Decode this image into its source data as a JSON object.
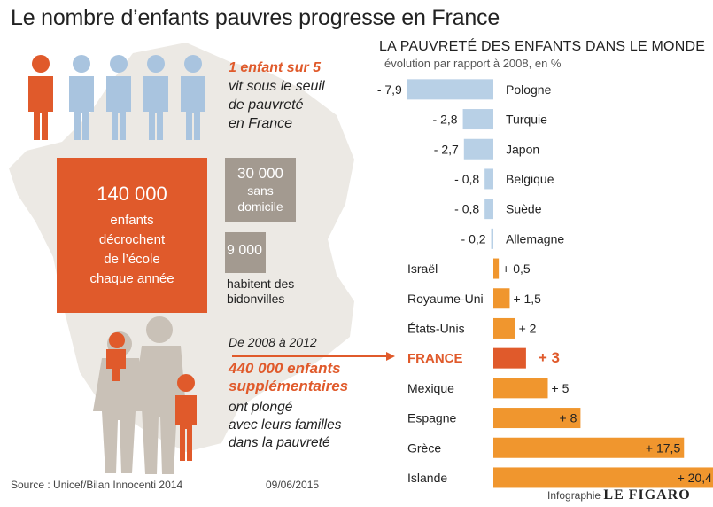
{
  "header": {
    "title": "Le nombre d’enfants pauvres progresse en France"
  },
  "stats": {
    "ratio_highlight": "1 enfant sur 5",
    "ratio_line1": "vit sous le seuil",
    "ratio_line2": "de pauvreté",
    "ratio_line3": "en France",
    "dropout_value": "140 000",
    "dropout_line1": "enfants",
    "dropout_line2": "décrochent",
    "dropout_line3": "de l’école",
    "dropout_line4": "chaque année",
    "homeless_value": "30 000",
    "homeless_line1": "sans",
    "homeless_line2": "domicile",
    "slums_value": "9 000",
    "slums_line1": "habitent des",
    "slums_line2": "bidonvilles",
    "period": "De 2008 à 2012",
    "increase_line1": "440 000 enfants",
    "increase_line2": "supplémentaires",
    "increase_line3": "ont plongé",
    "increase_line4": "avec leurs familles",
    "increase_line5": "dans la pauvreté"
  },
  "colors": {
    "accent": "#e05a2b",
    "negative_bar": "#b8d0e6",
    "positive_bar": "#f0962e",
    "france_bar": "#e05a2b",
    "map": "#ece9e4",
    "box_gray": "#a39a90",
    "kid_blue": "#a9c4df"
  },
  "chart_data": {
    "type": "bar",
    "orientation": "horizontal",
    "title": "LA PAUVRETÉ DES ENFANTS DANS LE MONDE",
    "subtitle": "évolution par rapport à 2008, en %",
    "categories": [
      "Pologne",
      "Turquie",
      "Japon",
      "Belgique",
      "Suède",
      "Allemagne",
      "Israël",
      "Royaume-Uni",
      "États-Unis",
      "FRANCE",
      "Mexique",
      "Espagne",
      "Grèce",
      "Islande"
    ],
    "values": [
      -7.9,
      -2.8,
      -2.7,
      -0.8,
      -0.8,
      -0.2,
      0.5,
      1.5,
      2,
      3,
      5,
      8,
      17.5,
      20.4
    ],
    "value_labels": [
      "- 7,9",
      "- 2,8",
      "- 2,7",
      "- 0,8",
      "- 0,8",
      "- 0,2",
      "+ 0,5",
      "+ 1,5",
      "+ 2",
      "+ 3",
      "+ 5",
      "+ 8",
      "+ 17,5",
      "+ 20,4"
    ],
    "highlight": "FRANCE"
  },
  "footer": {
    "source": "Source : Unicef/Bilan Innocenti 2014",
    "date": "09/06/2015",
    "credit_prefix": "Infographie",
    "credit_brand": "LE FIGARO"
  }
}
